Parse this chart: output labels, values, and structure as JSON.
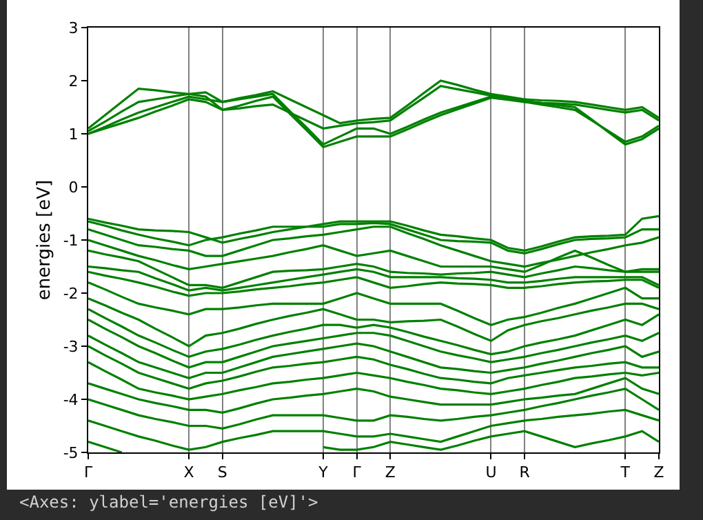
{
  "chart_data": {
    "type": "line",
    "ylabel": "energies [eV]",
    "annotations": [
      "<Axes: ylabel='energies [eV]'>"
    ],
    "categories": [
      "Γ",
      null,
      null,
      null,
      null,
      null,
      "X",
      null,
      "S",
      null,
      null,
      null,
      null,
      null,
      "Y",
      null,
      "Γ",
      null,
      "Z",
      null,
      null,
      null,
      null,
      null,
      "U",
      null,
      "R",
      null,
      null,
      null,
      null,
      null,
      "T",
      null,
      "Z"
    ],
    "ylim": [
      -5,
      3
    ],
    "yticks": [
      -5,
      -4,
      -3,
      -2,
      -1,
      0,
      1,
      2,
      3
    ],
    "grid": "x",
    "marker": "none",
    "line_style": "solid",
    "series": [
      {
        "color": "#008000",
        "values": [
          1.1,
          1.35,
          1.6,
          1.85,
          1.82,
          1.78,
          1.75,
          1.78,
          1.6,
          1.67,
          1.73,
          1.8,
          1.65,
          1.5,
          1.35,
          1.2,
          1.25,
          1.28,
          1.3,
          1.53,
          1.77,
          2.0,
          1.92,
          1.83,
          1.75,
          1.7,
          1.65,
          1.63,
          1.62,
          1.6,
          1.55,
          1.5,
          1.45,
          1.5,
          1.3
        ]
      },
      {
        "color": "#008000",
        "values": [
          1.05,
          1.23,
          1.42,
          1.6,
          1.65,
          1.7,
          1.75,
          1.7,
          1.45,
          1.48,
          1.52,
          1.55,
          1.4,
          1.25,
          1.1,
          1.15,
          1.2,
          1.22,
          1.25,
          1.47,
          1.68,
          1.9,
          1.84,
          1.78,
          1.72,
          1.68,
          1.6,
          1.58,
          1.57,
          1.55,
          1.5,
          1.45,
          1.4,
          1.45,
          1.25
        ]
      },
      {
        "color": "#008000",
        "values": [
          1.0,
          1.13,
          1.27,
          1.4,
          1.5,
          1.6,
          1.7,
          1.65,
          1.6,
          1.65,
          1.7,
          1.75,
          1.43,
          1.12,
          0.8,
          0.95,
          1.1,
          1.1,
          1.0,
          1.13,
          1.27,
          1.4,
          1.5,
          1.6,
          1.7,
          1.66,
          1.62,
          1.58,
          1.54,
          1.5,
          1.27,
          1.03,
          0.8,
          0.9,
          1.1
        ]
      },
      {
        "color": "#008000",
        "values": [
          1.0,
          1.1,
          1.2,
          1.3,
          1.42,
          1.53,
          1.65,
          1.6,
          1.45,
          1.53,
          1.62,
          1.7,
          1.38,
          1.07,
          0.75,
          0.85,
          0.95,
          0.95,
          0.95,
          1.08,
          1.22,
          1.35,
          1.46,
          1.57,
          1.68,
          1.64,
          1.6,
          1.55,
          1.5,
          1.45,
          1.25,
          1.05,
          0.85,
          0.95,
          1.15
        ]
      },
      {
        "color": "#008000",
        "values": [
          -0.6,
          -0.67,
          -0.73,
          -0.8,
          -0.82,
          -0.83,
          -0.85,
          -0.95,
          -1.05,
          -0.98,
          -0.92,
          -0.85,
          -0.8,
          -0.75,
          -0.7,
          -0.65,
          -0.65,
          -0.65,
          -0.65,
          -0.73,
          -0.82,
          -0.9,
          -0.93,
          -0.97,
          -1.0,
          -1.15,
          -1.2,
          -1.12,
          -1.03,
          -0.95,
          -0.93,
          -0.92,
          -0.9,
          -0.6,
          -0.55
        ]
      },
      {
        "color": "#008000",
        "values": [
          -0.65,
          -0.73,
          -0.82,
          -0.9,
          -0.97,
          -1.03,
          -1.1,
          -1.0,
          -0.95,
          -0.88,
          -0.82,
          -0.75,
          -0.75,
          -0.75,
          -0.75,
          -0.7,
          -0.7,
          -0.68,
          -0.7,
          -0.8,
          -0.9,
          -1.0,
          -1.02,
          -1.03,
          -1.05,
          -1.2,
          -1.25,
          -1.17,
          -1.08,
          -1.0,
          -0.98,
          -0.97,
          -0.95,
          -0.8,
          -0.8
        ]
      },
      {
        "color": "#008000",
        "values": [
          -0.8,
          -0.9,
          -1.0,
          -1.1,
          -1.13,
          -1.17,
          -1.2,
          -1.3,
          -1.3,
          -1.2,
          -1.1,
          -1.0,
          -0.97,
          -0.93,
          -0.9,
          -0.85,
          -0.8,
          -0.75,
          -0.75,
          -0.87,
          -0.98,
          -1.1,
          -1.2,
          -1.3,
          -1.4,
          -1.45,
          -1.5,
          -1.43,
          -1.37,
          -1.3,
          -1.23,
          -1.17,
          -1.1,
          -1.05,
          -0.95
        ]
      },
      {
        "color": "#008000",
        "values": [
          -1.0,
          -1.1,
          -1.2,
          -1.3,
          -1.38,
          -1.47,
          -1.55,
          -1.5,
          -1.45,
          -1.4,
          -1.35,
          -1.3,
          -1.23,
          -1.17,
          -1.1,
          -1.2,
          -1.3,
          -1.25,
          -1.2,
          -1.3,
          -1.4,
          -1.5,
          -1.5,
          -1.5,
          -1.5,
          -1.55,
          -1.6,
          -1.47,
          -1.33,
          -1.2,
          -1.33,
          -1.47,
          -1.6,
          -1.55,
          -1.55
        ]
      },
      {
        "color": "#008000",
        "values": [
          -1.2,
          -1.27,
          -1.33,
          -1.4,
          -1.55,
          -1.7,
          -1.85,
          -1.85,
          -1.9,
          -1.8,
          -1.7,
          -1.6,
          -1.58,
          -1.57,
          -1.55,
          -1.5,
          -1.45,
          -1.5,
          -1.6,
          -1.62,
          -1.63,
          -1.65,
          -1.63,
          -1.62,
          -1.6,
          -1.65,
          -1.7,
          -1.63,
          -1.57,
          -1.5,
          -1.53,
          -1.57,
          -1.6,
          -1.6,
          -1.6
        ]
      },
      {
        "color": "#008000",
        "values": [
          -1.5,
          -1.53,
          -1.57,
          -1.6,
          -1.72,
          -1.83,
          -1.95,
          -1.9,
          -1.95,
          -1.9,
          -1.85,
          -1.8,
          -1.75,
          -1.7,
          -1.65,
          -1.6,
          -1.55,
          -1.6,
          -1.7,
          -1.7,
          -1.7,
          -1.7,
          -1.72,
          -1.73,
          -1.75,
          -1.8,
          -1.8,
          -1.77,
          -1.73,
          -1.7,
          -1.7,
          -1.7,
          -1.7,
          -1.7,
          -1.85
        ]
      },
      {
        "color": "#008000",
        "values": [
          -1.6,
          -1.67,
          -1.73,
          -1.8,
          -1.88,
          -1.97,
          -2.05,
          -2.0,
          -2.0,
          -1.97,
          -1.93,
          -1.9,
          -1.87,
          -1.83,
          -1.8,
          -1.75,
          -1.7,
          -1.8,
          -1.9,
          -1.87,
          -1.83,
          -1.8,
          -1.82,
          -1.83,
          -1.85,
          -1.9,
          -1.9,
          -1.87,
          -1.83,
          -1.8,
          -1.78,
          -1.77,
          -1.75,
          -1.75,
          -1.9
        ]
      },
      {
        "color": "#008000",
        "values": [
          -1.8,
          -1.93,
          -2.07,
          -2.2,
          -2.27,
          -2.33,
          -2.4,
          -2.3,
          -2.3,
          -2.27,
          -2.23,
          -2.2,
          -2.2,
          -2.2,
          -2.2,
          -2.1,
          -2.0,
          -2.1,
          -2.2,
          -2.2,
          -2.2,
          -2.2,
          -2.33,
          -2.47,
          -2.6,
          -2.5,
          -2.45,
          -2.37,
          -2.28,
          -2.2,
          -2.1,
          -2.0,
          -1.9,
          -2.1,
          -2.1
        ]
      },
      {
        "color": "#008000",
        "values": [
          -2.1,
          -2.23,
          -2.37,
          -2.5,
          -2.67,
          -2.83,
          -3.0,
          -2.8,
          -2.75,
          -2.67,
          -2.58,
          -2.5,
          -2.43,
          -2.37,
          -2.3,
          -2.4,
          -2.5,
          -2.5,
          -2.55,
          -2.53,
          -2.52,
          -2.5,
          -2.63,
          -2.77,
          -2.9,
          -2.7,
          -2.6,
          -2.53,
          -2.47,
          -2.4,
          -2.33,
          -2.27,
          -2.2,
          -2.2,
          -2.3
        ]
      },
      {
        "color": "#008000",
        "values": [
          -2.3,
          -2.47,
          -2.63,
          -2.8,
          -2.93,
          -3.07,
          -3.2,
          -3.1,
          -3.05,
          -2.97,
          -2.88,
          -2.8,
          -2.73,
          -2.67,
          -2.6,
          -2.6,
          -2.65,
          -2.6,
          -2.65,
          -2.73,
          -2.82,
          -2.9,
          -2.98,
          -3.07,
          -3.15,
          -3.1,
          -3.0,
          -2.93,
          -2.87,
          -2.8,
          -2.7,
          -2.6,
          -2.5,
          -2.6,
          -2.4
        ]
      },
      {
        "color": "#008000",
        "values": [
          -2.5,
          -2.67,
          -2.83,
          -3.0,
          -3.13,
          -3.27,
          -3.4,
          -3.3,
          -3.3,
          -3.2,
          -3.1,
          -3.0,
          -2.95,
          -2.9,
          -2.85,
          -2.8,
          -2.75,
          -2.75,
          -2.8,
          -2.9,
          -3.0,
          -3.1,
          -3.17,
          -3.23,
          -3.3,
          -3.25,
          -3.2,
          -3.13,
          -3.07,
          -3.0,
          -2.93,
          -2.87,
          -2.8,
          -2.9,
          -2.75
        ]
      },
      {
        "color": "#008000",
        "values": [
          -2.8,
          -2.97,
          -3.13,
          -3.3,
          -3.4,
          -3.5,
          -3.6,
          -3.5,
          -3.5,
          -3.4,
          -3.3,
          -3.2,
          -3.15,
          -3.1,
          -3.05,
          -3.0,
          -2.95,
          -3.0,
          -3.1,
          -3.2,
          -3.3,
          -3.4,
          -3.43,
          -3.47,
          -3.5,
          -3.45,
          -3.4,
          -3.33,
          -3.27,
          -3.2,
          -3.13,
          -3.07,
          -3.0,
          -3.2,
          -3.1
        ]
      },
      {
        "color": "#008000",
        "values": [
          -3.0,
          -3.17,
          -3.33,
          -3.5,
          -3.6,
          -3.7,
          -3.8,
          -3.7,
          -3.65,
          -3.57,
          -3.48,
          -3.4,
          -3.37,
          -3.33,
          -3.3,
          -3.25,
          -3.2,
          -3.25,
          -3.35,
          -3.43,
          -3.52,
          -3.6,
          -3.63,
          -3.67,
          -3.7,
          -3.6,
          -3.55,
          -3.5,
          -3.45,
          -3.4,
          -3.37,
          -3.33,
          -3.3,
          -3.4,
          -3.4
        ]
      },
      {
        "color": "#008000",
        "values": [
          -3.3,
          -3.47,
          -3.63,
          -3.8,
          -3.87,
          -3.93,
          -4.0,
          -3.95,
          -3.9,
          -3.83,
          -3.77,
          -3.7,
          -3.67,
          -3.63,
          -3.6,
          -3.55,
          -3.5,
          -3.55,
          -3.6,
          -3.67,
          -3.73,
          -3.8,
          -3.83,
          -3.87,
          -3.9,
          -3.85,
          -3.8,
          -3.73,
          -3.67,
          -3.6,
          -3.57,
          -3.53,
          -3.5,
          -3.55,
          -3.5
        ]
      },
      {
        "color": "#008000",
        "values": [
          -3.7,
          -3.8,
          -3.9,
          -4.0,
          -4.07,
          -4.13,
          -4.2,
          -4.2,
          -4.25,
          -4.17,
          -4.08,
          -4.0,
          -3.97,
          -3.93,
          -3.9,
          -3.85,
          -3.8,
          -3.85,
          -3.95,
          -4.0,
          -4.05,
          -4.1,
          -4.1,
          -4.1,
          -4.1,
          -4.05,
          -4.0,
          -3.97,
          -3.93,
          -3.9,
          -3.8,
          -3.7,
          -3.6,
          -3.8,
          -3.9
        ]
      },
      {
        "color": "#008000",
        "values": [
          -4.0,
          -4.1,
          -4.2,
          -4.3,
          -4.37,
          -4.43,
          -4.5,
          -4.5,
          -4.55,
          -4.47,
          -4.38,
          -4.3,
          -4.3,
          -4.3,
          -4.3,
          -4.35,
          -4.4,
          -4.4,
          -4.3,
          -4.33,
          -4.37,
          -4.4,
          -4.37,
          -4.33,
          -4.3,
          -4.25,
          -4.2,
          -4.13,
          -4.07,
          -4.0,
          -3.93,
          -3.87,
          -3.8,
          -4.0,
          -4.2
        ]
      },
      {
        "color": "#008000",
        "values": [
          -4.4,
          -4.5,
          -4.6,
          -4.7,
          -4.78,
          -4.87,
          -4.95,
          -4.9,
          -4.8,
          -4.73,
          -4.67,
          -4.6,
          -4.6,
          -4.6,
          -4.6,
          -4.65,
          -4.7,
          -4.7,
          -4.65,
          -4.7,
          -4.75,
          -4.8,
          -4.7,
          -4.6,
          -4.5,
          -4.45,
          -4.4,
          -4.37,
          -4.33,
          -4.3,
          -4.27,
          -4.23,
          -4.2,
          -4.3,
          -4.4
        ]
      },
      {
        "color": "#008000",
        "values": [
          -4.8,
          -4.9,
          -5.0,
          null,
          null,
          null,
          null,
          null,
          null,
          null,
          null,
          null,
          null,
          null,
          -4.9,
          -4.95,
          -4.95,
          -4.9,
          -4.8,
          -4.85,
          -4.9,
          -4.95,
          -4.87,
          -4.78,
          -4.7,
          -4.65,
          -4.6,
          -4.7,
          -4.8,
          -4.9,
          -4.83,
          -4.77,
          -4.7,
          -4.6,
          -4.8
        ]
      }
    ]
  }
}
